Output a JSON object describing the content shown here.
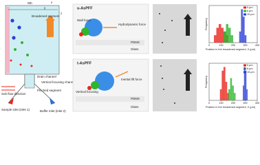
{
  "diagram": {
    "wb": "Wb",
    "axis_x": "x",
    "axis_y": "y",
    "axis_z": "z",
    "broadened": "Broadened segment",
    "drain": "Drain channel",
    "vertical": "Vertical focusing channel",
    "pinched": "Pinched segment",
    "sub_flow": "Sub flow direction",
    "sample": "Sample inlet (inlet 1)",
    "buffer": "Buffer inlet (inlet 2)"
  },
  "panels": [
    {
      "title": "u-AsPFF",
      "labels": [
        "Hydrodynamic force",
        "Wall force",
        "PDMS",
        "Glass"
      ]
    },
    {
      "title": "t-AsPFF",
      "labels": [
        "Inertial lift force",
        "Vertical focusing",
        "PDMS",
        "Glass"
      ]
    }
  ],
  "charts": [
    {
      "type": "histogram",
      "xlabel": "Position in the broadened segment, X (μm)",
      "ylabel": "Frequency",
      "xlim": [
        0,
        400
      ],
      "xticks": [
        0,
        100,
        200,
        300,
        400
      ],
      "ylim": [
        0,
        10
      ],
      "series": [
        {
          "name": "5 μm",
          "color": "#e8261c",
          "bins": [
            40,
            60,
            80,
            100,
            120,
            140,
            160
          ],
          "values": [
            2,
            4,
            5,
            4,
            3,
            2
          ]
        },
        {
          "name": "8 μm",
          "color": "#2fb52f",
          "bins": [
            120,
            140,
            160,
            180,
            200
          ],
          "values": [
            3,
            5,
            4,
            2
          ]
        },
        {
          "name": "15 μm",
          "color": "#2a3fd6",
          "bins": [
            250,
            265,
            280,
            295,
            310
          ],
          "values": [
            3,
            9,
            7,
            2
          ]
        }
      ]
    },
    {
      "type": "histogram",
      "xlabel": "Position in the broadened segment, X (μm)",
      "ylabel": "Frequency",
      "xlim": [
        0,
        400
      ],
      "xticks": [
        0,
        100,
        200,
        300,
        400
      ],
      "ylim": [
        0,
        10
      ],
      "series": [
        {
          "name": "5 μm",
          "color": "#e8261c",
          "bins": [
            90,
            105,
            120,
            135,
            150,
            165
          ],
          "values": [
            3,
            8,
            9,
            5,
            2
          ]
        },
        {
          "name": "8 μm",
          "color": "#2fb52f",
          "bins": [
            160,
            175,
            190,
            205,
            220
          ],
          "values": [
            3,
            6,
            4,
            2
          ]
        },
        {
          "name": "15 μm",
          "color": "#2a3fd6",
          "bins": [
            280,
            290,
            300,
            310,
            320
          ],
          "values": [
            4,
            9,
            8,
            3
          ]
        }
      ]
    }
  ]
}
